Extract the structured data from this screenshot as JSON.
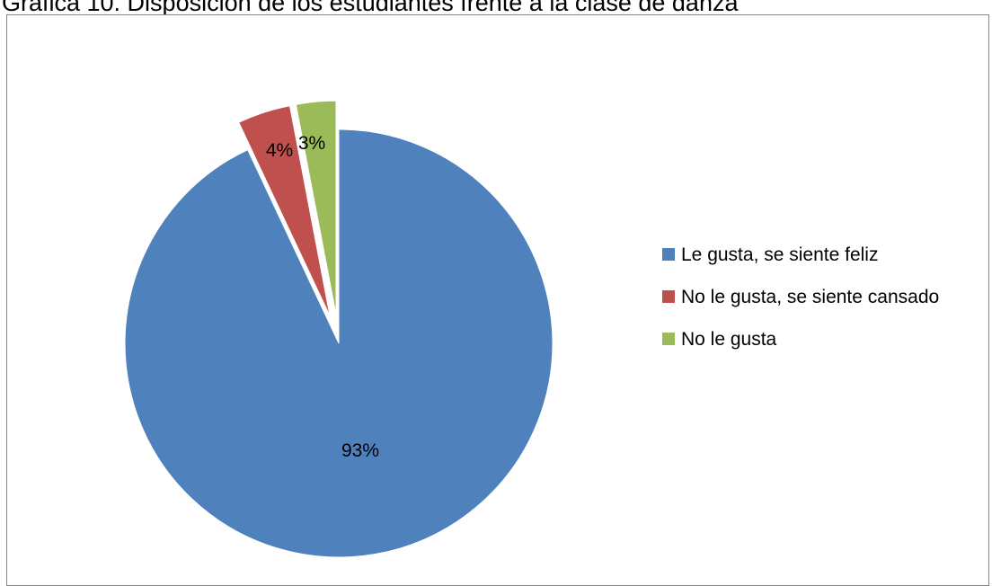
{
  "caption": "Gráfica 10. Disposición de los estudiantes frente a la clase de danza",
  "chart_data": {
    "type": "pie",
    "title": "Gráfica 10. Disposición de los estudiantes frente a la clase de danza",
    "legend_position": "right",
    "slices": [
      {
        "name": "Le gusta, se siente feliz",
        "value": 93,
        "label": "93%",
        "color": "#4F81BD",
        "exploded": false
      },
      {
        "name": "No le gusta, se siente cansado",
        "value": 4,
        "label": "4%",
        "color": "#C0504D",
        "exploded": true
      },
      {
        "name": "No le gusta",
        "value": 3,
        "label": "3%",
        "color": "#9BBB59",
        "exploded": true
      }
    ]
  }
}
